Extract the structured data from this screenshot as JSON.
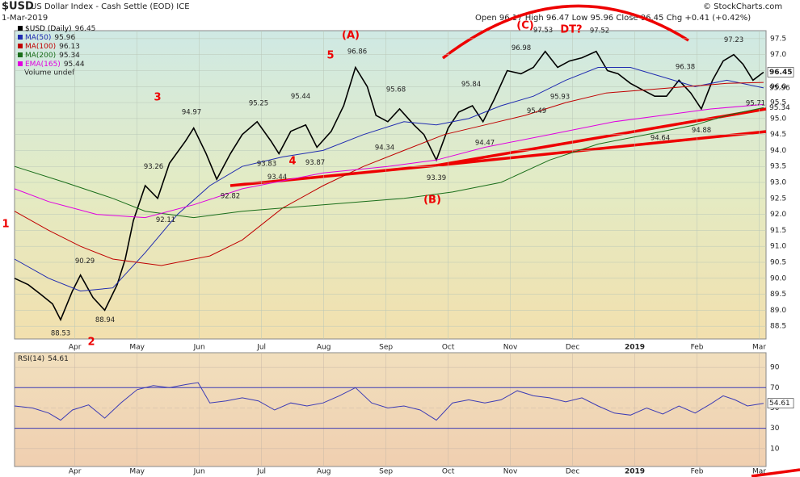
{
  "chart_data": {
    "type": "line",
    "symbol": "$USD",
    "title": "US Dollar Index - Cash Settle (EOD) ICE",
    "date": "1-Mar-2019",
    "quote": "Open 96.17 High 96.47 Low 95.96 Close 96.45 Chg +0.41 (+0.42%)",
    "credit": "© StockCharts.com",
    "volume_note": "Volume undef",
    "xlim": [
      2.03,
      14.11
    ],
    "xticks": [
      {
        "value": 3,
        "label": "Apr"
      },
      {
        "value": 4,
        "label": "May"
      },
      {
        "value": 5,
        "label": "Jun"
      },
      {
        "value": 6,
        "label": "Jul"
      },
      {
        "value": 7,
        "label": "Aug"
      },
      {
        "value": 8,
        "label": "Sep"
      },
      {
        "value": 9,
        "label": "Oct"
      },
      {
        "value": 10,
        "label": "Nov"
      },
      {
        "value": 11,
        "label": "Dec"
      },
      {
        "value": 12,
        "label": "2019"
      },
      {
        "value": 13,
        "label": "Feb"
      },
      {
        "value": 14,
        "label": "Mar"
      }
    ],
    "ylim": [
      88.1,
      97.75
    ],
    "yticks": [
      88.5,
      {
        "value": 89,
        "label": "89.0"
      },
      89.5,
      {
        "value": 90,
        "label": "90.0"
      },
      90.5,
      {
        "value": 91,
        "label": "91.0"
      },
      91.5,
      {
        "value": 92,
        "label": "92.0"
      },
      92.5,
      {
        "value": 93,
        "label": "93.0"
      },
      93.5,
      {
        "value": 94,
        "label": "94.0"
      },
      94.5,
      {
        "value": 95,
        "label": "95.0"
      },
      95.5,
      {
        "value": 96,
        "label": "96.0"
      },
      96.5,
      {
        "value": 97,
        "label": "97.0"
      },
      97.5
    ],
    "series": [
      {
        "name": "$USD (Daily)",
        "last": 96.45,
        "color": "#000000",
        "x": [
          2.03,
          2.25,
          2.45,
          2.64,
          2.77,
          2.96,
          3.09,
          3.29,
          3.48,
          3.68,
          3.81,
          3.94,
          4.13,
          4.33,
          4.52,
          4.78,
          4.91,
          5.11,
          5.28,
          5.5,
          5.69,
          5.93,
          6.15,
          6.28,
          6.47,
          6.71,
          6.89,
          7.12,
          7.32,
          7.51,
          7.7,
          7.84,
          8.03,
          8.22,
          8.45,
          8.61,
          8.81,
          9.0,
          9.17,
          9.39,
          9.56,
          9.74,
          9.95,
          10.17,
          10.37,
          10.56,
          10.76,
          10.95,
          11.15,
          11.38,
          11.56,
          11.73,
          11.93,
          12.12,
          12.32,
          12.51,
          12.71,
          12.9,
          13.07,
          13.25,
          13.42,
          13.59,
          13.74,
          13.9,
          14.07
        ],
        "values": [
          90.0,
          89.8,
          89.5,
          89.2,
          88.7,
          89.6,
          90.1,
          89.4,
          89.0,
          89.8,
          90.6,
          91.8,
          92.9,
          92.5,
          93.6,
          94.3,
          94.7,
          93.9,
          93.1,
          93.9,
          94.5,
          94.9,
          94.3,
          93.9,
          94.6,
          94.8,
          94.1,
          94.6,
          95.4,
          96.6,
          96.0,
          95.1,
          94.9,
          95.3,
          94.8,
          94.5,
          93.7,
          94.7,
          95.2,
          95.4,
          94.9,
          95.6,
          96.5,
          96.4,
          96.6,
          97.1,
          96.6,
          96.8,
          96.9,
          97.1,
          96.5,
          96.4,
          96.1,
          95.9,
          95.7,
          95.7,
          96.2,
          95.8,
          95.3,
          96.2,
          96.8,
          97.0,
          96.7,
          96.2,
          96.45
        ]
      },
      {
        "name": "MA(50)",
        "last": 95.96,
        "color": "#1f2bb0",
        "x": [
          2.03,
          2.58,
          3.09,
          3.61,
          4.13,
          4.65,
          5.17,
          5.69,
          6.34,
          6.99,
          7.64,
          8.29,
          8.81,
          9.33,
          9.85,
          10.37,
          10.89,
          11.41,
          11.93,
          12.45,
          12.97,
          13.48,
          14.07
        ],
        "values": [
          90.6,
          90.0,
          89.6,
          89.7,
          90.8,
          92.0,
          92.9,
          93.5,
          93.8,
          94.0,
          94.5,
          94.9,
          94.8,
          95.0,
          95.4,
          95.7,
          96.2,
          96.6,
          96.6,
          96.3,
          96.0,
          96.2,
          95.96
        ]
      },
      {
        "name": "MA(100)",
        "last": 96.13,
        "color": "#c00000",
        "x": [
          2.03,
          2.58,
          3.09,
          3.61,
          4.39,
          5.17,
          5.69,
          6.34,
          6.99,
          7.64,
          8.29,
          8.94,
          9.59,
          10.24,
          10.89,
          11.54,
          12.19,
          12.84,
          13.48,
          14.07
        ],
        "values": [
          92.1,
          91.5,
          91.0,
          90.6,
          90.4,
          90.7,
          91.2,
          92.2,
          92.9,
          93.5,
          94.0,
          94.5,
          94.8,
          95.1,
          95.5,
          95.8,
          95.9,
          96.0,
          96.1,
          96.13
        ]
      },
      {
        "name": "MA(200)",
        "last": 95.34,
        "color": "#1a6e1a",
        "x": [
          2.03,
          2.84,
          3.61,
          4.13,
          4.91,
          5.69,
          6.99,
          8.29,
          9.07,
          9.85,
          10.63,
          11.41,
          12.19,
          12.97,
          13.48,
          14.07
        ],
        "values": [
          93.5,
          93.0,
          92.5,
          92.1,
          91.9,
          92.1,
          92.3,
          92.5,
          92.7,
          93.0,
          93.7,
          94.2,
          94.5,
          94.8,
          95.1,
          95.34
        ]
      },
      {
        "name": "EMA(165)",
        "last": 95.44,
        "color": "#e000e0",
        "x": [
          2.03,
          2.58,
          3.35,
          4.13,
          4.91,
          5.69,
          6.99,
          8.03,
          8.81,
          9.59,
          10.63,
          11.67,
          12.45,
          13.22,
          14.07
        ],
        "values": [
          92.8,
          92.4,
          92.0,
          91.9,
          92.3,
          92.8,
          93.3,
          93.5,
          93.7,
          94.1,
          94.5,
          94.9,
          95.1,
          95.3,
          95.44
        ]
      }
    ],
    "price_labels": [
      88.53,
      90.29,
      88.94,
      92.11,
      93.26,
      94.97,
      92.82,
      95.25,
      93.83,
      93.44,
      95.44,
      93.87,
      96.86,
      95.68,
      94.34,
      93.39,
      95.84,
      94.47,
      96.98,
      97.53,
      95.49,
      95.93,
      97.52,
      96.38,
      94.64,
      94.88,
      97.23,
      95.71
    ],
    "wave_labels": [
      "1",
      "2",
      "3",
      "4",
      "5",
      "(A)",
      "(B)",
      "(C)",
      "DT?"
    ],
    "rsi": {
      "name": "RSI(14)",
      "last": 54.61,
      "color": "#3b3bb5",
      "ylim": [
        -7.6,
        104.4
      ],
      "yticks": [
        10,
        30,
        50,
        70,
        90
      ],
      "x": [
        2.03,
        2.32,
        2.58,
        2.77,
        2.96,
        3.22,
        3.48,
        3.74,
        4.0,
        4.26,
        4.52,
        4.78,
        4.98,
        5.17,
        5.43,
        5.69,
        5.95,
        6.21,
        6.47,
        6.73,
        6.99,
        7.25,
        7.51,
        7.77,
        8.03,
        8.29,
        8.55,
        8.81,
        9.07,
        9.33,
        9.59,
        9.85,
        10.11,
        10.37,
        10.63,
        10.89,
        11.15,
        11.41,
        11.67,
        11.93,
        12.19,
        12.45,
        12.71,
        12.97,
        13.22,
        13.42,
        13.61,
        13.81,
        14.07
      ],
      "values": [
        52,
        50,
        45,
        38,
        48,
        53,
        40,
        55,
        68,
        72,
        70,
        73,
        75,
        55,
        57,
        60,
        57,
        48,
        55,
        52,
        55,
        62,
        70,
        55,
        50,
        52,
        48,
        38,
        55,
        58,
        55,
        58,
        67,
        62,
        60,
        56,
        60,
        52,
        45,
        43,
        50,
        44,
        52,
        45,
        54,
        62,
        58,
        52,
        54.61
      ]
    }
  }
}
